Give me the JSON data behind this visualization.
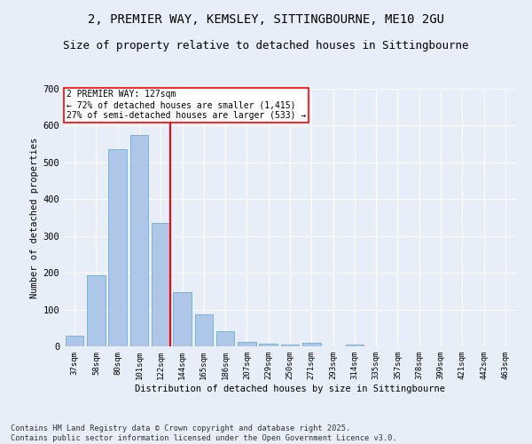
{
  "title1": "2, PREMIER WAY, KEMSLEY, SITTINGBOURNE, ME10 2GU",
  "title2": "Size of property relative to detached houses in Sittingbourne",
  "xlabel": "Distribution of detached houses by size in Sittingbourne",
  "ylabel": "Number of detached properties",
  "categories": [
    "37sqm",
    "58sqm",
    "80sqm",
    "101sqm",
    "122sqm",
    "144sqm",
    "165sqm",
    "186sqm",
    "207sqm",
    "229sqm",
    "250sqm",
    "271sqm",
    "293sqm",
    "314sqm",
    "335sqm",
    "357sqm",
    "378sqm",
    "399sqm",
    "421sqm",
    "442sqm",
    "463sqm"
  ],
  "values": [
    30,
    193,
    535,
    575,
    335,
    148,
    86,
    40,
    12,
    8,
    5,
    10,
    0,
    5,
    0,
    0,
    0,
    0,
    0,
    0,
    0
  ],
  "bar_color": "#aec6e8",
  "bar_edge_color": "#6baed6",
  "vline_color": "red",
  "annotation_title": "2 PREMIER WAY: 127sqm",
  "annotation_line1": "← 72% of detached houses are smaller (1,415)",
  "annotation_line2": "27% of semi-detached houses are larger (533) →",
  "annotation_box_color": "red",
  "ylim": [
    0,
    700
  ],
  "yticks": [
    0,
    100,
    200,
    300,
    400,
    500,
    600,
    700
  ],
  "footnote1": "Contains HM Land Registry data © Crown copyright and database right 2025.",
  "footnote2": "Contains public sector information licensed under the Open Government Licence v3.0.",
  "bg_color": "#e8eef8",
  "plot_bg_color": "#e8eef8",
  "title_fontsize": 10,
  "subtitle_fontsize": 9,
  "vline_bar_index": 4
}
